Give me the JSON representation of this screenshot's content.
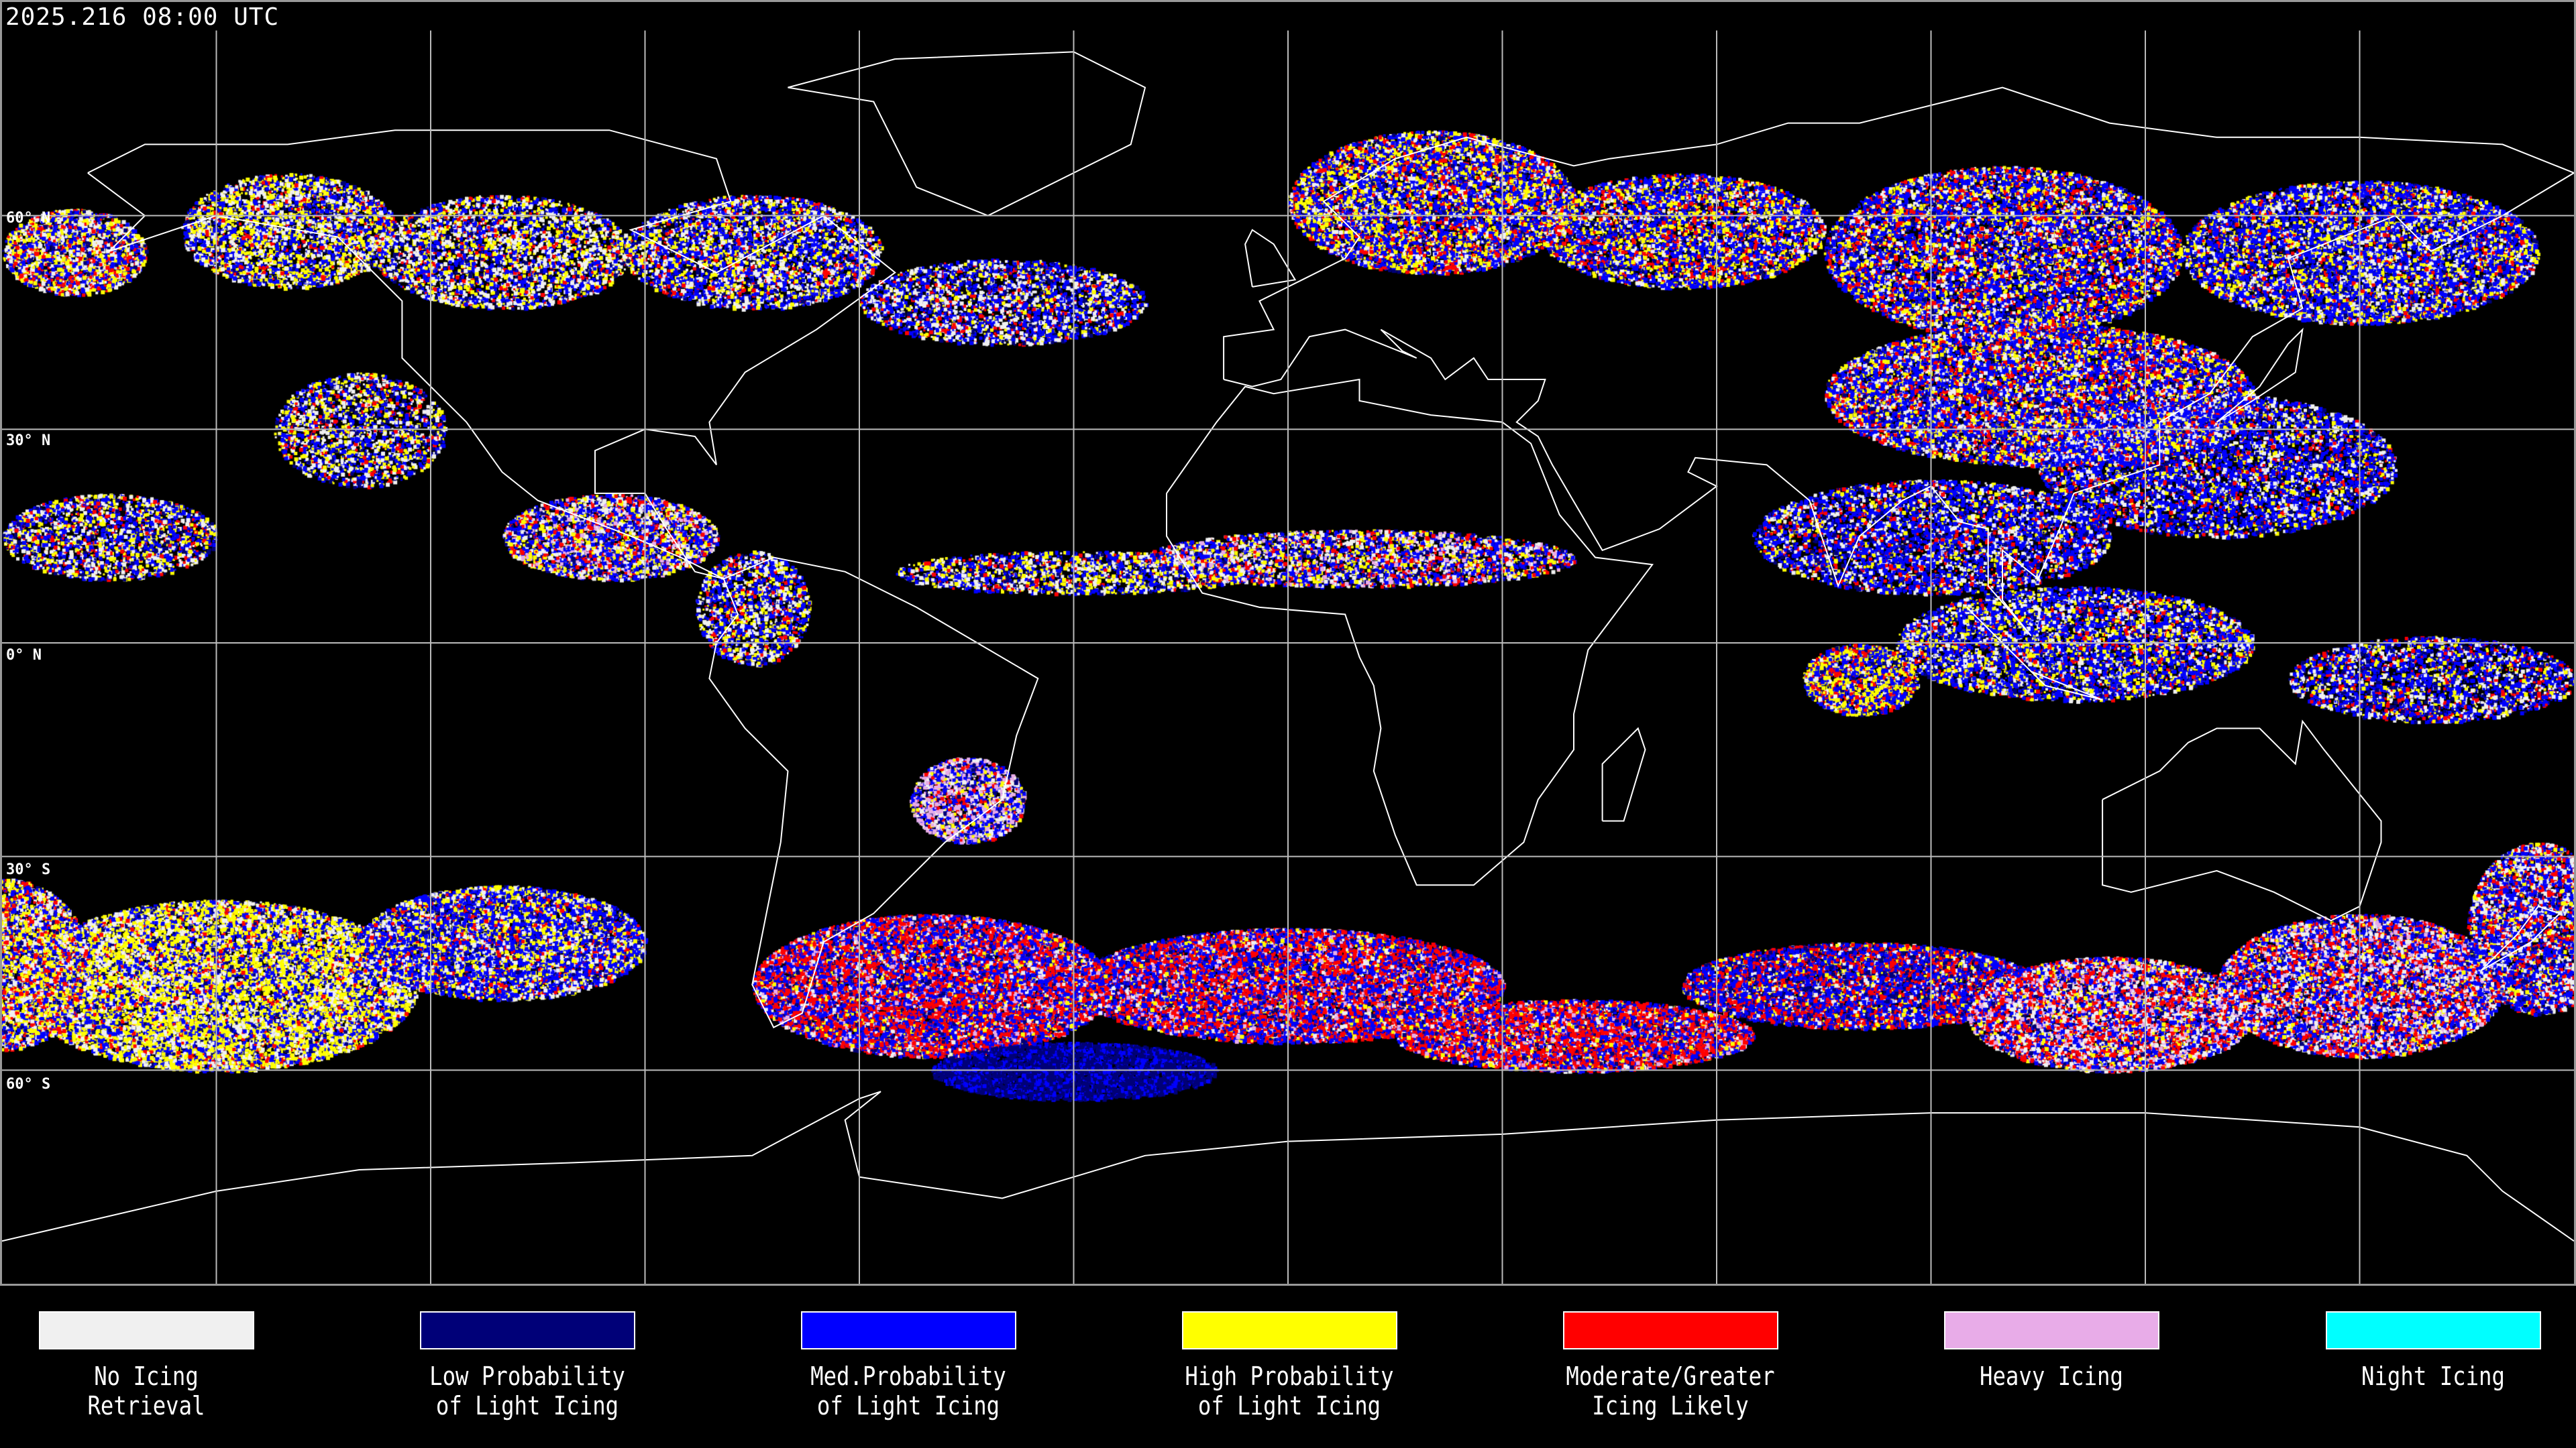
{
  "header": {
    "timestamp": "2025.216 08:00 UTC"
  },
  "map": {
    "projection": "equirectangular",
    "lat_labels": [
      "60° N",
      "30° N",
      "0° N",
      "30° S",
      "60° S"
    ],
    "grid_spacing_deg": 30
  },
  "legend": {
    "items": [
      {
        "label": "No Icing\nRetrieval",
        "color": "#f0f0f0"
      },
      {
        "label": "Low Probability\nof Light Icing",
        "color": "#000078"
      },
      {
        "label": "Med.Probability\nof Light Icing",
        "color": "#0000ff"
      },
      {
        "label": "High Probability\nof Light Icing",
        "color": "#ffff00"
      },
      {
        "label": "Moderate/Greater\nIcing Likely",
        "color": "#ff0000"
      },
      {
        "label": "Heavy Icing",
        "color": "#e8ace8"
      },
      {
        "label": "Night Icing",
        "color": "#00ffff"
      }
    ]
  }
}
